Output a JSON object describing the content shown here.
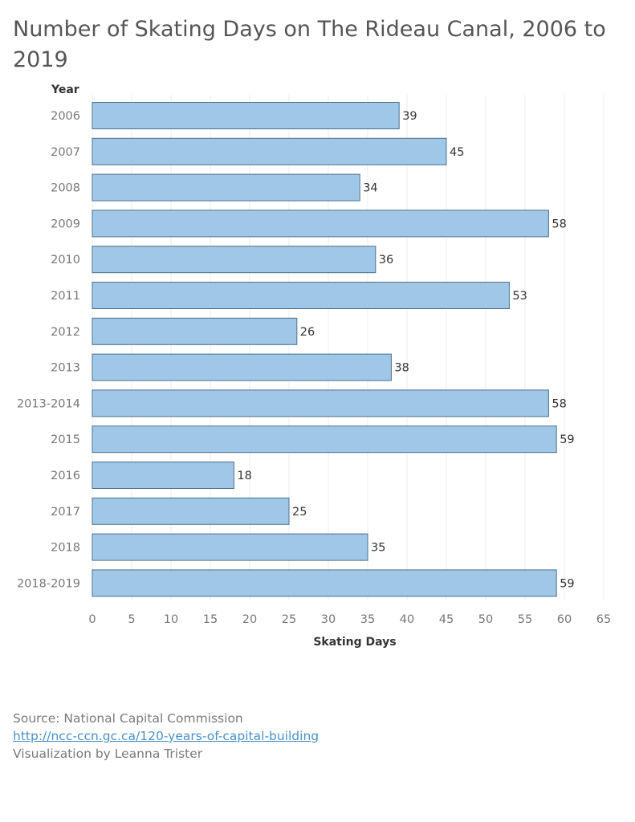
{
  "title": "Number of Skating Days on The Rideau Canal, 2006 to 2019",
  "chart_data": {
    "type": "bar",
    "orientation": "horizontal",
    "title": "Number of Skating Days on The Rideau Canal, 2006 to 2019",
    "ylabel": "Year",
    "xlabel": "Skating Days",
    "xlim": [
      0,
      65
    ],
    "x_ticks": [
      0,
      5,
      10,
      15,
      20,
      25,
      30,
      35,
      40,
      45,
      50,
      55,
      60,
      65
    ],
    "grid": true,
    "categories": [
      "2006",
      "2007",
      "2008",
      "2009",
      "2010",
      "2011",
      "2012",
      "2013",
      "2013-2014",
      "2015",
      "2016",
      "2017",
      "2018",
      "2018-2019"
    ],
    "values": [
      39,
      45,
      34,
      58,
      36,
      53,
      26,
      38,
      58,
      59,
      18,
      25,
      35,
      59
    ],
    "data_labels": true
  },
  "colors": {
    "bar_fill": "#9fc8e8",
    "bar_stroke": "#4c6f8c",
    "grid": "#ececec",
    "axis_text": "#777777",
    "label_text": "#333333"
  },
  "footer": {
    "source": "Source: National Capital Commission",
    "link": "http://ncc-ccn.gc.ca/120-years-of-capital-building",
    "credit": "Visualization by Leanna Trister"
  }
}
